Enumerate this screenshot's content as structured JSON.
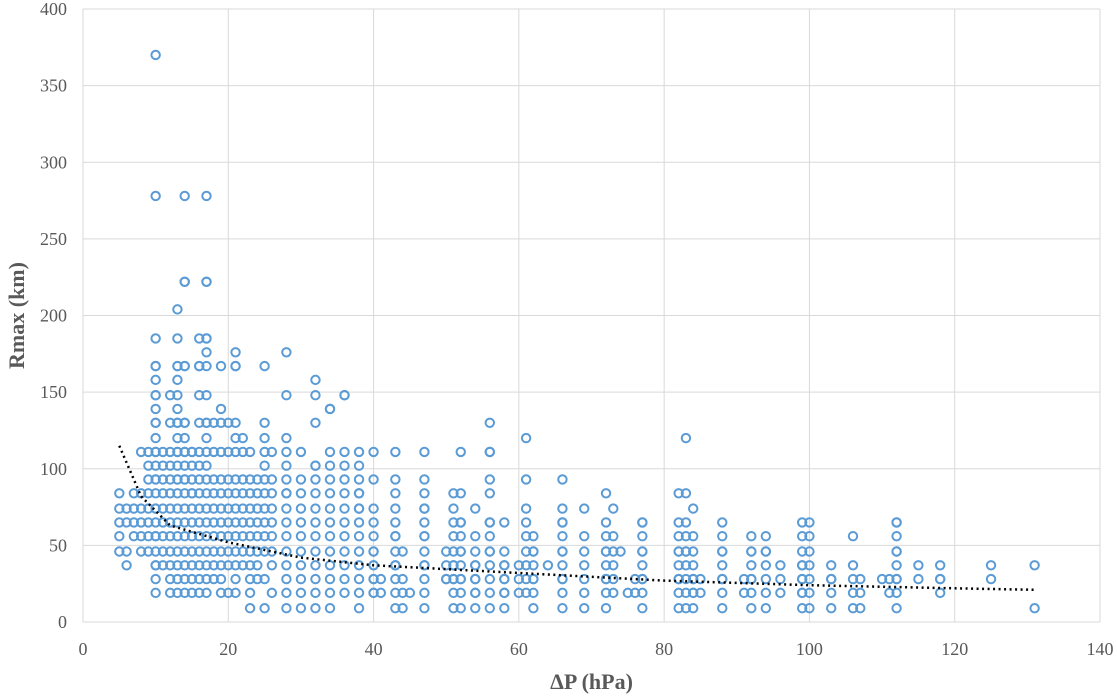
{
  "chart_data": {
    "type": "scatter",
    "title": "",
    "xlabel": "ΔP (hPa)",
    "ylabel": "Rmax (km)",
    "xlim": [
      0,
      140
    ],
    "ylim": [
      0,
      400
    ],
    "xticks": [
      0,
      20,
      40,
      60,
      80,
      100,
      120,
      140
    ],
    "yticks": [
      0,
      50,
      100,
      150,
      200,
      250,
      300,
      350,
      400
    ],
    "grid": true,
    "legend": "none",
    "colors": {
      "points": "#5b9bd5",
      "trendline": "#000000"
    },
    "trendline": {
      "style": "dotted",
      "points": [
        [
          5,
          115
        ],
        [
          8,
          82
        ],
        [
          12,
          63
        ],
        [
          20,
          52
        ],
        [
          30,
          42
        ],
        [
          40,
          37
        ],
        [
          60,
          32
        ],
        [
          80,
          27
        ],
        [
          100,
          24
        ],
        [
          120,
          22
        ],
        [
          131,
          21
        ]
      ]
    },
    "series": [
      {
        "x": [
          5,
          5,
          5,
          5,
          5,
          6,
          6,
          6,
          6,
          7,
          7,
          7,
          7,
          8,
          8,
          8,
          8,
          8,
          8,
          9,
          9,
          9,
          9,
          9,
          9,
          9,
          9,
          10,
          10,
          10,
          10,
          10,
          10,
          10,
          10,
          10,
          10,
          10,
          10,
          10,
          10,
          10,
          10,
          10,
          10,
          10,
          10,
          10,
          10,
          10,
          10,
          10,
          10,
          10,
          10,
          11,
          11,
          11,
          11,
          11,
          11,
          11,
          11,
          11,
          12,
          12,
          12,
          12,
          12,
          12,
          12,
          12,
          12,
          12,
          12,
          12,
          12,
          13,
          13,
          13,
          13,
          13,
          13,
          13,
          13,
          13,
          13,
          13,
          13,
          13,
          13,
          13,
          13,
          13,
          13,
          13,
          13,
          13,
          13,
          13,
          14,
          14,
          14,
          14,
          14,
          14,
          14,
          14,
          14,
          14,
          14,
          14,
          14,
          14,
          14,
          14,
          14,
          14,
          14,
          14,
          14,
          15,
          15,
          15,
          15,
          15,
          15,
          15,
          15,
          15,
          15,
          15,
          15,
          15,
          16,
          16,
          16,
          16,
          16,
          16,
          16,
          16,
          16,
          16,
          16,
          16,
          16,
          16,
          16,
          16,
          17,
          17,
          17,
          17,
          17,
          17,
          17,
          17,
          17,
          17,
          17,
          17,
          17,
          17,
          17,
          17,
          17,
          17,
          17,
          17,
          17,
          17,
          18,
          18,
          18,
          18,
          18,
          18,
          18,
          18,
          18,
          18,
          19,
          19,
          19,
          19,
          19,
          19,
          19,
          19,
          19,
          19,
          19,
          19,
          19,
          20,
          20,
          20,
          20,
          20,
          20,
          20,
          20,
          20,
          20,
          21,
          21,
          21,
          21,
          21,
          21,
          21,
          21,
          21,
          21,
          21,
          21,
          21,
          21,
          21,
          22,
          22,
          22,
          22,
          22,
          22,
          22,
          22,
          22,
          23,
          23,
          23,
          23,
          23,
          23,
          23,
          23,
          23,
          23,
          23,
          24,
          24,
          24,
          24,
          24,
          24,
          24,
          24,
          25,
          25,
          25,
          25,
          25,
          25,
          25,
          25,
          25,
          25,
          25,
          25,
          25,
          26,
          26,
          26,
          26,
          26,
          26,
          26,
          26,
          26,
          28,
          28,
          28,
          28,
          28,
          28,
          28,
          28,
          28,
          28,
          28,
          28,
          28,
          28,
          28,
          28,
          30,
          30,
          30,
          30,
          30,
          30,
          30,
          30,
          30,
          30,
          30,
          32,
          32,
          32,
          32,
          32,
          32,
          32,
          32,
          32,
          32,
          32,
          32,
          32,
          32,
          32,
          34,
          34,
          34,
          34,
          34,
          34,
          34,
          34,
          34,
          34,
          34,
          34,
          34,
          34,
          36,
          36,
          36,
          36,
          36,
          36,
          36,
          36,
          36,
          36,
          36,
          36,
          36,
          38,
          38,
          38,
          38,
          38,
          38,
          38,
          38,
          38,
          38,
          38,
          38,
          38,
          38,
          40,
          40,
          40,
          40,
          40,
          40,
          40,
          40,
          40,
          40,
          40,
          40,
          40,
          41,
          41,
          43,
          43,
          43,
          43,
          43,
          43,
          43,
          43,
          43,
          43,
          43,
          43,
          43,
          44,
          44,
          44,
          44,
          45,
          47,
          47,
          47,
          47,
          47,
          47,
          47,
          47,
          47,
          47,
          47,
          47,
          47,
          47,
          50,
          50,
          50,
          50,
          51,
          51,
          51,
          51,
          51,
          51,
          51,
          51,
          51,
          51,
          51,
          52,
          52,
          52,
          52,
          52,
          52,
          52,
          52,
          52,
          52,
          52,
          52,
          54,
          54,
          54,
          54,
          54,
          54,
          54,
          54,
          54,
          54,
          56,
          56,
          56,
          56,
          56,
          56,
          56,
          56,
          56,
          56,
          56,
          56,
          56,
          56,
          58,
          58,
          58,
          58,
          58,
          58,
          58,
          58,
          58,
          60,
          60,
          60,
          61,
          61,
          61,
          61,
          61,
          61,
          61,
          61,
          61,
          62,
          62,
          62,
          62,
          62,
          62,
          62,
          62,
          64,
          66,
          66,
          66,
          66,
          66,
          66,
          66,
          66,
          66,
          66,
          66,
          66,
          69,
          69,
          69,
          69,
          69,
          69,
          69,
          72,
          72,
          72,
          72,
          72,
          72,
          72,
          72,
          72,
          72,
          73,
          73,
          73,
          73,
          73,
          73,
          74,
          75,
          76,
          76,
          77,
          77,
          77,
          77,
          77,
          77,
          77,
          77,
          77,
          77,
          82,
          82,
          82,
          82,
          82,
          82,
          82,
          82,
          82,
          82,
          83,
          83,
          83,
          83,
          83,
          83,
          83,
          83,
          83,
          83,
          84,
          84,
          84,
          84,
          84,
          84,
          84,
          84,
          84,
          85,
          85,
          88,
          88,
          88,
          88,
          88,
          88,
          88,
          88,
          88,
          91,
          91,
          92,
          92,
          92,
          92,
          92,
          92,
          92,
          92,
          94,
          94,
          94,
          94,
          94,
          94,
          94,
          96,
          96,
          96,
          99,
          99,
          99,
          99,
          99,
          99,
          99,
          99,
          99,
          99,
          100,
          100,
          100,
          100,
          100,
          100,
          100,
          103,
          103,
          103,
          103,
          103,
          106,
          106,
          106,
          106,
          106,
          107,
          107,
          107,
          110,
          111,
          111,
          112,
          112,
          112,
          112,
          112,
          112,
          112,
          112,
          112,
          112,
          115,
          115,
          118,
          118,
          118,
          118,
          125,
          125,
          131,
          131
        ],
        "y": [
          84,
          74,
          65,
          56,
          46,
          74,
          65,
          46,
          37,
          84,
          74,
          65,
          56,
          84,
          74,
          65,
          56,
          46,
          111,
          111,
          102,
          93,
          84,
          74,
          65,
          56,
          46,
          370,
          278,
          185,
          167,
          158,
          148,
          139,
          130,
          120,
          111,
          102,
          93,
          84,
          74,
          65,
          56,
          46,
          37,
          28,
          19,
          167,
          148,
          130,
          111,
          93,
          74,
          56,
          37,
          111,
          102,
          93,
          84,
          74,
          65,
          56,
          46,
          37,
          148,
          130,
          111,
          102,
          93,
          84,
          74,
          65,
          56,
          46,
          37,
          28,
          19,
          204,
          185,
          167,
          158,
          148,
          139,
          130,
          120,
          111,
          102,
          93,
          84,
          74,
          65,
          56,
          46,
          37,
          28,
          19,
          167,
          130,
          111,
          93,
          278,
          222,
          167,
          130,
          120,
          111,
          102,
          93,
          84,
          74,
          65,
          56,
          46,
          37,
          28,
          19,
          222,
          167,
          130,
          111,
          93,
          111,
          102,
          93,
          84,
          74,
          65,
          56,
          46,
          37,
          28,
          19,
          111,
          84,
          185,
          167,
          148,
          130,
          111,
          102,
          93,
          84,
          74,
          65,
          56,
          46,
          37,
          28,
          19,
          167,
          278,
          222,
          185,
          176,
          167,
          148,
          130,
          120,
          111,
          102,
          93,
          84,
          74,
          65,
          56,
          46,
          37,
          28,
          19,
          222,
          185,
          130,
          130,
          111,
          93,
          84,
          74,
          65,
          56,
          46,
          37,
          28,
          167,
          139,
          130,
          111,
          93,
          84,
          74,
          65,
          56,
          46,
          37,
          28,
          19,
          130,
          111,
          93,
          84,
          74,
          65,
          56,
          46,
          37,
          19,
          176,
          167,
          130,
          120,
          111,
          93,
          84,
          74,
          65,
          56,
          46,
          37,
          28,
          19,
          167,
          120,
          111,
          93,
          84,
          74,
          65,
          56,
          46,
          37,
          111,
          93,
          84,
          74,
          65,
          56,
          46,
          37,
          28,
          19,
          9,
          93,
          84,
          74,
          65,
          56,
          46,
          37,
          28,
          167,
          130,
          120,
          111,
          102,
          93,
          84,
          74,
          65,
          56,
          46,
          28,
          9,
          111,
          93,
          84,
          74,
          65,
          56,
          46,
          37,
          19,
          176,
          148,
          120,
          111,
          102,
          93,
          84,
          74,
          65,
          56,
          46,
          37,
          28,
          19,
          9,
          84,
          111,
          93,
          84,
          74,
          65,
          56,
          46,
          37,
          28,
          19,
          9,
          158,
          148,
          130,
          102,
          93,
          84,
          74,
          65,
          56,
          46,
          37,
          28,
          19,
          9,
          102,
          139,
          111,
          102,
          93,
          84,
          74,
          65,
          56,
          46,
          37,
          28,
          19,
          9,
          139,
          148,
          111,
          102,
          93,
          84,
          74,
          65,
          56,
          46,
          37,
          28,
          19,
          148,
          111,
          102,
          93,
          84,
          74,
          65,
          56,
          46,
          37,
          28,
          19,
          9,
          84,
          74,
          111,
          93,
          74,
          65,
          56,
          46,
          37,
          28,
          19,
          46,
          37,
          28,
          19,
          28,
          19,
          111,
          93,
          84,
          74,
          65,
          56,
          46,
          37,
          28,
          19,
          9,
          56,
          37,
          46,
          28,
          19,
          9,
          19,
          111,
          93,
          84,
          74,
          65,
          56,
          46,
          37,
          28,
          19,
          9,
          74,
          56,
          37,
          37,
          28,
          46,
          28,
          84,
          74,
          65,
          56,
          46,
          37,
          28,
          19,
          9,
          37,
          28,
          111,
          84,
          65,
          56,
          46,
          37,
          28,
          19,
          9,
          65,
          46,
          28,
          74,
          56,
          46,
          37,
          28,
          19,
          9,
          37,
          28,
          19,
          130,
          111,
          93,
          84,
          65,
          56,
          46,
          37,
          28,
          19,
          9,
          111,
          65,
          46,
          65,
          46,
          37,
          28,
          19,
          9,
          37,
          28,
          19,
          28,
          19,
          37,
          120,
          93,
          74,
          65,
          56,
          46,
          37,
          28,
          19,
          56,
          46,
          37,
          28,
          19,
          9,
          46,
          28,
          37,
          93,
          74,
          65,
          56,
          46,
          37,
          28,
          19,
          9,
          65,
          46,
          28,
          74,
          56,
          46,
          37,
          28,
          19,
          9,
          84,
          65,
          56,
          46,
          37,
          28,
          19,
          9,
          46,
          28,
          74,
          56,
          46,
          37,
          28,
          19,
          46,
          19,
          28,
          19,
          65,
          56,
          46,
          37,
          28,
          19,
          9,
          65,
          46,
          28,
          84,
          65,
          56,
          46,
          37,
          28,
          19,
          9,
          46,
          28,
          120,
          84,
          65,
          56,
          46,
          37,
          28,
          19,
          9,
          46,
          74,
          56,
          46,
          37,
          28,
          19,
          9,
          28,
          19,
          28,
          19,
          65,
          56,
          46,
          37,
          28,
          19,
          9,
          46,
          28,
          28,
          19,
          56,
          46,
          37,
          28,
          19,
          9,
          46,
          28,
          56,
          46,
          37,
          28,
          19,
          9,
          46,
          37,
          28,
          19,
          65,
          56,
          46,
          37,
          28,
          19,
          9,
          37,
          28,
          19,
          65,
          56,
          46,
          37,
          28,
          19,
          9,
          37,
          28,
          19,
          9,
          28,
          56,
          37,
          28,
          19,
          9,
          28,
          19,
          9,
          28,
          28,
          19,
          65,
          56,
          46,
          37,
          28,
          19,
          9,
          65,
          46,
          28,
          37,
          28,
          37,
          28,
          19,
          28,
          37,
          28,
          37,
          9
        ]
      }
    ]
  }
}
